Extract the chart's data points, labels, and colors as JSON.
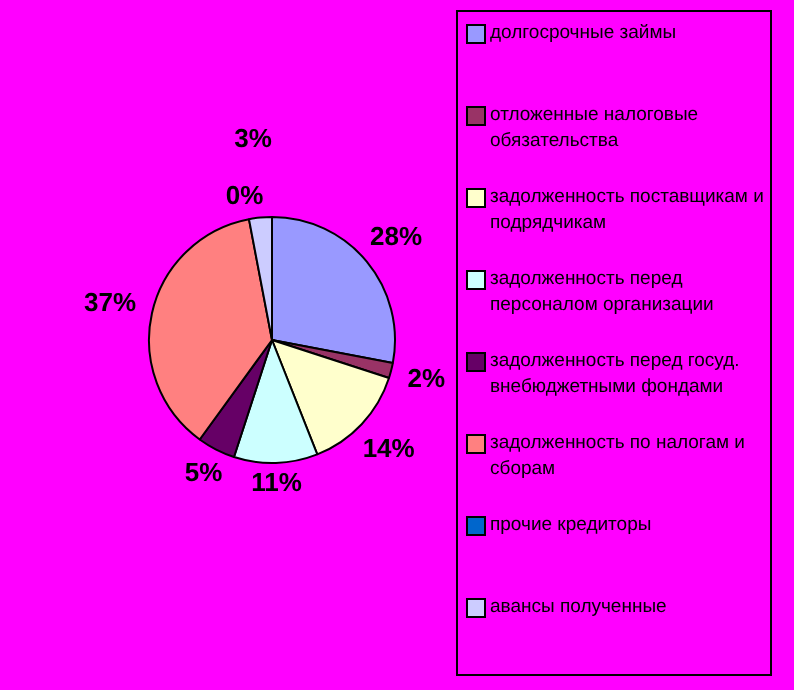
{
  "chart_data": {
    "type": "pie",
    "categories": [
      "долгосрочные займы",
      "отложенные налоговые обязательства",
      "задолженность поставщикам и подрядчикам",
      "задолженность перед персоналом организации",
      "задолженность перед госуд. внебюджетными фондами",
      "задолженность по налогам и сборам",
      "прочие кредиторы",
      "авансы полученные"
    ],
    "values": [
      28,
      2,
      14,
      11,
      5,
      37,
      0,
      3
    ],
    "colors": [
      "#9999ff",
      "#993366",
      "#ffffcc",
      "#ccffff",
      "#660066",
      "#ff8080",
      "#0066cc",
      "#ccccff"
    ],
    "value_labels": [
      "28%",
      "2%",
      "14%",
      "11%",
      "5%",
      "37%",
      "0%",
      "3%"
    ],
    "legend": "right"
  }
}
